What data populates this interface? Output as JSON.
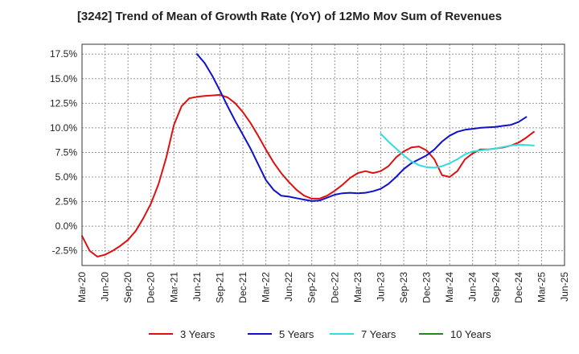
{
  "chart_data": {
    "type": "line",
    "title": "[3242]  Trend of Mean of Growth Rate (YoY) of 12Mo Mov Sum of Revenues",
    "xlabel": "",
    "ylabel": "",
    "ylim": [
      -4.0,
      18.5
    ],
    "y_ticks": [
      {
        "value": 17.5,
        "label": "17.5%"
      },
      {
        "value": 15.0,
        "label": "15.0%"
      },
      {
        "value": 12.5,
        "label": "12.5%"
      },
      {
        "value": 10.0,
        "label": "10.0%"
      },
      {
        "value": 7.5,
        "label": "7.5%"
      },
      {
        "value": 5.0,
        "label": "5.0%"
      },
      {
        "value": 2.5,
        "label": "2.5%"
      },
      {
        "value": 0.0,
        "label": "0.0%"
      },
      {
        "value": -2.5,
        "label": "-2.5%"
      }
    ],
    "x_range": [
      0,
      63
    ],
    "x_ticks": [
      {
        "index": 0,
        "label": "Mar-20"
      },
      {
        "index": 3,
        "label": "Jun-20"
      },
      {
        "index": 6,
        "label": "Sep-20"
      },
      {
        "index": 9,
        "label": "Dec-20"
      },
      {
        "index": 12,
        "label": "Mar-21"
      },
      {
        "index": 15,
        "label": "Jun-21"
      },
      {
        "index": 18,
        "label": "Sep-21"
      },
      {
        "index": 21,
        "label": "Dec-21"
      },
      {
        "index": 24,
        "label": "Mar-22"
      },
      {
        "index": 27,
        "label": "Jun-22"
      },
      {
        "index": 30,
        "label": "Sep-22"
      },
      {
        "index": 33,
        "label": "Dec-22"
      },
      {
        "index": 36,
        "label": "Mar-23"
      },
      {
        "index": 39,
        "label": "Jun-23"
      },
      {
        "index": 42,
        "label": "Sep-23"
      },
      {
        "index": 45,
        "label": "Dec-23"
      },
      {
        "index": 48,
        "label": "Mar-24"
      },
      {
        "index": 51,
        "label": "Jun-24"
      },
      {
        "index": 54,
        "label": "Sep-24"
      },
      {
        "index": 57,
        "label": "Dec-24"
      },
      {
        "index": 60,
        "label": "Mar-25"
      },
      {
        "index": 63,
        "label": "Jun-25"
      }
    ],
    "series": [
      {
        "name": "3 Years",
        "color": "#dd1111",
        "start_index": 0,
        "values": [
          -1.0,
          -2.5,
          -3.1,
          -2.9,
          -2.5,
          -2.0,
          -1.4,
          -0.5,
          0.8,
          2.3,
          4.3,
          7.0,
          10.3,
          12.2,
          13.0,
          13.15,
          13.25,
          13.3,
          13.35,
          13.1,
          12.5,
          11.6,
          10.5,
          9.2,
          7.8,
          6.5,
          5.4,
          4.5,
          3.7,
          3.1,
          2.8,
          2.8,
          3.1,
          3.6,
          4.2,
          4.9,
          5.4,
          5.6,
          5.4,
          5.6,
          6.1,
          7.0,
          7.6,
          8.0,
          8.1,
          7.7,
          6.8,
          5.2,
          5.0,
          5.6,
          6.8,
          7.4,
          7.8,
          7.8,
          7.9,
          8.0,
          8.2,
          8.5,
          9.0,
          9.6
        ]
      },
      {
        "name": "5 Years",
        "color": "#1111cc",
        "start_index": 15,
        "values": [
          17.5,
          16.6,
          15.3,
          13.8,
          12.2,
          10.7,
          9.3,
          7.9,
          6.3,
          4.7,
          3.7,
          3.1,
          3.0,
          2.85,
          2.7,
          2.55,
          2.6,
          2.9,
          3.2,
          3.35,
          3.4,
          3.35,
          3.4,
          3.55,
          3.8,
          4.3,
          5.0,
          5.8,
          6.4,
          6.8,
          7.2,
          7.8,
          8.6,
          9.2,
          9.6,
          9.8,
          9.9,
          10.0,
          10.05,
          10.1,
          10.2,
          10.3,
          10.6,
          11.1
        ]
      },
      {
        "name": "7 Years",
        "color": "#33dddd",
        "start_index": 39,
        "values": [
          9.4,
          8.6,
          7.9,
          7.2,
          6.6,
          6.2,
          6.0,
          5.95,
          6.1,
          6.4,
          6.8,
          7.3,
          7.6,
          7.7,
          7.8,
          7.9,
          8.05,
          8.2,
          8.3,
          8.25,
          8.2
        ]
      },
      {
        "name": "10 Years",
        "color": "#228822",
        "start_index": 0,
        "values": []
      }
    ],
    "grid": true,
    "legend_position": "bottom"
  }
}
